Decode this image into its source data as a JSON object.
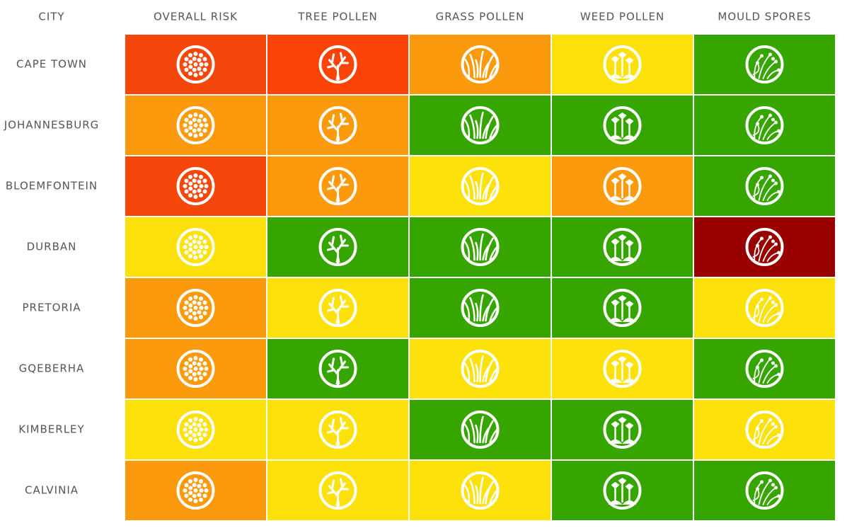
{
  "table": {
    "columns": [
      "CITY",
      "OVERALL RISK",
      "TREE POLLEN",
      "GRASS POLLEN",
      "WEED POLLEN",
      "MOULD SPORES"
    ],
    "rows": [
      {
        "city": "CAPE TOWN",
        "colors": [
          "#f5470c",
          "#fc4409",
          "#fb9a0c",
          "#fde10a",
          "#36a500"
        ]
      },
      {
        "city": "JOHANNESBURG",
        "colors": [
          "#fb9a0c",
          "#fb9a0c",
          "#36a500",
          "#36a500",
          "#36a500"
        ]
      },
      {
        "city": "BLOEMFONTEIN",
        "colors": [
          "#f5470c",
          "#fb9a0c",
          "#fde10a",
          "#fb9a0c",
          "#36a500"
        ]
      },
      {
        "city": "DURBAN",
        "colors": [
          "#fde10a",
          "#36a500",
          "#36a500",
          "#36a500",
          "#990000"
        ]
      },
      {
        "city": "PRETORIA",
        "colors": [
          "#fb9a0c",
          "#fde10a",
          "#36a500",
          "#36a500",
          "#fde10a"
        ]
      },
      {
        "city": "GQEBERHA",
        "colors": [
          "#fb9a0c",
          "#36a500",
          "#fde10a",
          "#fde10a",
          "#36a500"
        ]
      },
      {
        "city": "KIMBERLEY",
        "colors": [
          "#fde10a",
          "#fde10a",
          "#36a500",
          "#36a500",
          "#fde10a"
        ]
      },
      {
        "city": "CALVINIA",
        "colors": [
          "#fb9a0c",
          "#fde10a",
          "#fde10a",
          "#36a500",
          "#36a500"
        ]
      }
    ]
  }
}
